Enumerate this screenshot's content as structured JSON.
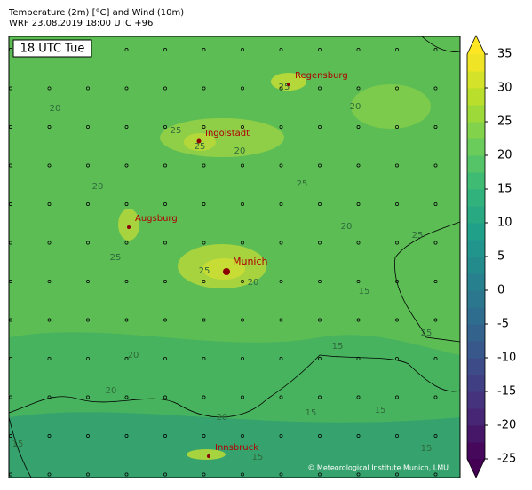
{
  "header": {
    "line1": "Temperature (2m) [°C] and Wind (10m)",
    "line2": "WRF 23.08.2019 18:00 UTC +96"
  },
  "map": {
    "time_label": "18 UTC Tue",
    "cities": [
      "Regensburg",
      "Ingolstadt",
      "Augsburg",
      "Munich",
      "Innsbruck"
    ],
    "contour_labels": [
      "20",
      "25",
      "20",
      "25",
      "20",
      "25",
      "25",
      "20",
      "25",
      "20",
      "20",
      "25",
      "15",
      "20",
      "25",
      "15",
      "15",
      "20",
      "15",
      "15",
      "25",
      "15",
      "20",
      "15"
    ],
    "copyright": "© Meteorological Institute Munich, LMU"
  },
  "colorbar": {
    "lim": [
      -25,
      35
    ],
    "ticks": [
      -25,
      -20,
      -15,
      -10,
      -5,
      0,
      5,
      10,
      15,
      20,
      25,
      30,
      35
    ]
  }
}
